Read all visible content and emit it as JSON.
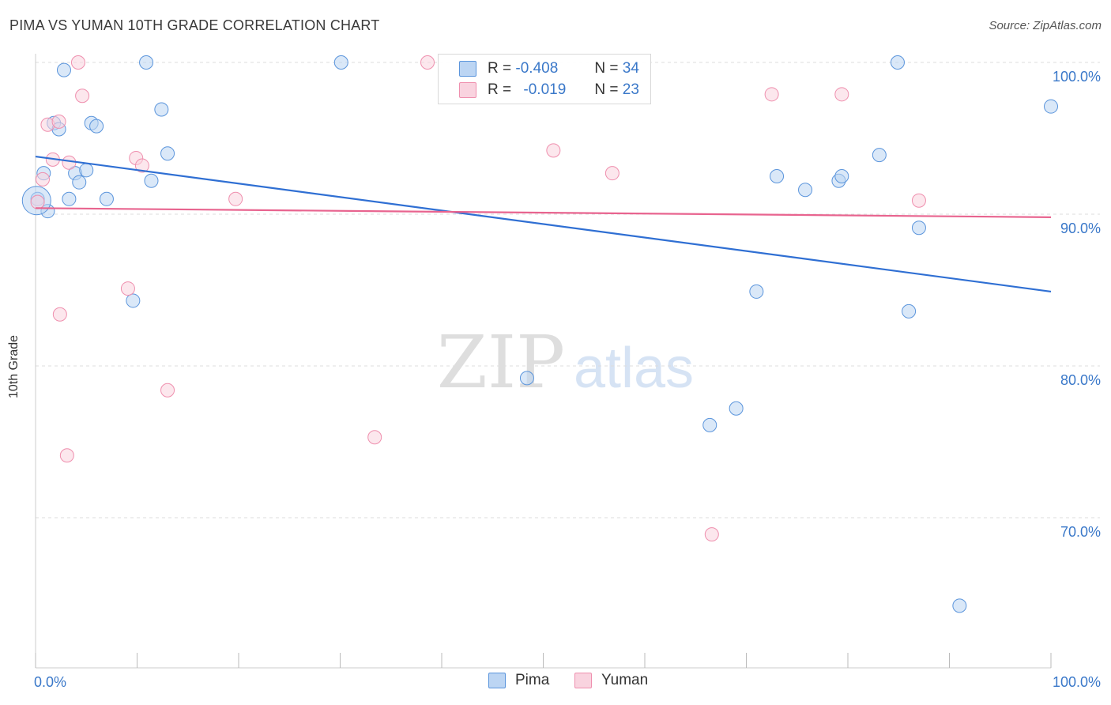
{
  "header": {
    "title": "PIMA VS YUMAN 10TH GRADE CORRELATION CHART",
    "source": "Source: ZipAtlas.com"
  },
  "legend": {
    "pima": {
      "r_label": "R =",
      "r_value": "-0.408",
      "n_label": "N =",
      "n_value": "34",
      "color": "#a8c6ef"
    },
    "yuman": {
      "r_label": "R =",
      "r_value": "-0.019",
      "n_label": "N =",
      "n_value": "23",
      "color": "#f6b9cb"
    }
  },
  "bottom_legend": {
    "pima": "Pima",
    "yuman": "Yuman"
  },
  "watermark": {
    "zip": "ZIP",
    "atlas": "atlas"
  },
  "chart_data": {
    "type": "scatter",
    "ylabel": "10th Grade",
    "xlim": [
      0,
      100
    ],
    "ylim": [
      60,
      101
    ],
    "x_tick_labels": [
      "0.0%",
      "100.0%"
    ],
    "y_ticks": [
      {
        "value": 100,
        "label": "100.0%"
      },
      {
        "value": 90,
        "label": "90.0%"
      },
      {
        "value": 80,
        "label": "80.0%"
      },
      {
        "value": 70,
        "label": "70.0%"
      }
    ],
    "grid": true,
    "series": [
      {
        "name": "Pima",
        "color": "#5b95dc",
        "fill": "#bcd5f3",
        "trend": {
          "x": [
            0,
            100
          ],
          "y": [
            93.8,
            84.9
          ],
          "color": "#2f6fd3"
        },
        "points": [
          [
            0.2,
            91.0
          ],
          [
            0.8,
            92.7
          ],
          [
            1.2,
            90.2
          ],
          [
            1.8,
            96.0
          ],
          [
            2.3,
            95.6
          ],
          [
            2.8,
            99.5
          ],
          [
            3.3,
            91.0
          ],
          [
            3.9,
            92.7
          ],
          [
            4.3,
            92.1
          ],
          [
            5.0,
            92.9
          ],
          [
            5.5,
            96.0
          ],
          [
            6.0,
            95.8
          ],
          [
            7.0,
            91.0
          ],
          [
            9.6,
            84.3
          ],
          [
            10.9,
            100.0
          ],
          [
            11.4,
            92.2
          ],
          [
            12.4,
            96.9
          ],
          [
            13.0,
            94.0
          ],
          [
            30.1,
            100.0
          ],
          [
            48.4,
            79.2
          ],
          [
            66.4,
            76.1
          ],
          [
            69.0,
            77.2
          ],
          [
            71.0,
            84.9
          ],
          [
            73.0,
            92.5
          ],
          [
            75.8,
            91.6
          ],
          [
            79.1,
            92.2
          ],
          [
            79.4,
            92.5
          ],
          [
            83.1,
            93.9
          ],
          [
            84.9,
            100.0
          ],
          [
            86.0,
            83.6
          ],
          [
            87.0,
            89.1
          ],
          [
            91.0,
            64.2
          ],
          [
            100.0,
            97.1
          ],
          [
            0.1,
            90.9
          ]
        ]
      },
      {
        "name": "Yuman",
        "color": "#ef8fae",
        "fill": "#f9d3df",
        "trend": {
          "x": [
            0,
            100
          ],
          "y": [
            90.4,
            89.8
          ],
          "color": "#e8648f"
        },
        "points": [
          [
            0.2,
            90.8
          ],
          [
            0.7,
            92.3
          ],
          [
            1.2,
            95.9
          ],
          [
            1.7,
            93.6
          ],
          [
            2.3,
            96.1
          ],
          [
            2.4,
            83.4
          ],
          [
            3.1,
            74.1
          ],
          [
            3.3,
            93.4
          ],
          [
            4.2,
            100.0
          ],
          [
            4.6,
            97.8
          ],
          [
            9.1,
            85.1
          ],
          [
            9.9,
            93.7
          ],
          [
            10.5,
            93.2
          ],
          [
            13.0,
            78.4
          ],
          [
            19.7,
            91.0
          ],
          [
            33.4,
            75.3
          ],
          [
            38.6,
            100.0
          ],
          [
            51.0,
            94.2
          ],
          [
            56.8,
            92.7
          ],
          [
            66.6,
            68.9
          ],
          [
            72.5,
            97.9
          ],
          [
            79.4,
            97.9
          ],
          [
            87.0,
            90.9
          ]
        ]
      }
    ]
  }
}
